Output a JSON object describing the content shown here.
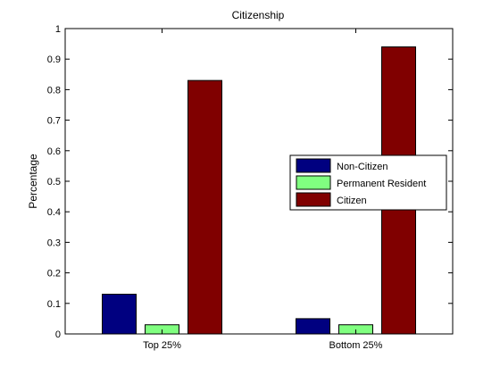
{
  "chart_data": {
    "type": "bar",
    "title": "Citizenship",
    "xlabel": "",
    "ylabel": "Percentage",
    "categories": [
      "Top 25%",
      "Bottom 25%"
    ],
    "series": [
      {
        "name": "Non-Citizen",
        "color": "#000080",
        "values": [
          0.13,
          0.05
        ]
      },
      {
        "name": "Permanent Resident",
        "color": "#80ff80",
        "values": [
          0.03,
          0.03
        ]
      },
      {
        "name": "Citizen",
        "color": "#800000",
        "values": [
          0.83,
          0.94
        ]
      }
    ],
    "ylim": [
      0,
      1
    ],
    "yticks": [
      "0",
      "0.1",
      "0.2",
      "0.3",
      "0.4",
      "0.5",
      "0.6",
      "0.7",
      "0.8",
      "0.9",
      "1"
    ],
    "grid": false,
    "legend_position": "right"
  }
}
